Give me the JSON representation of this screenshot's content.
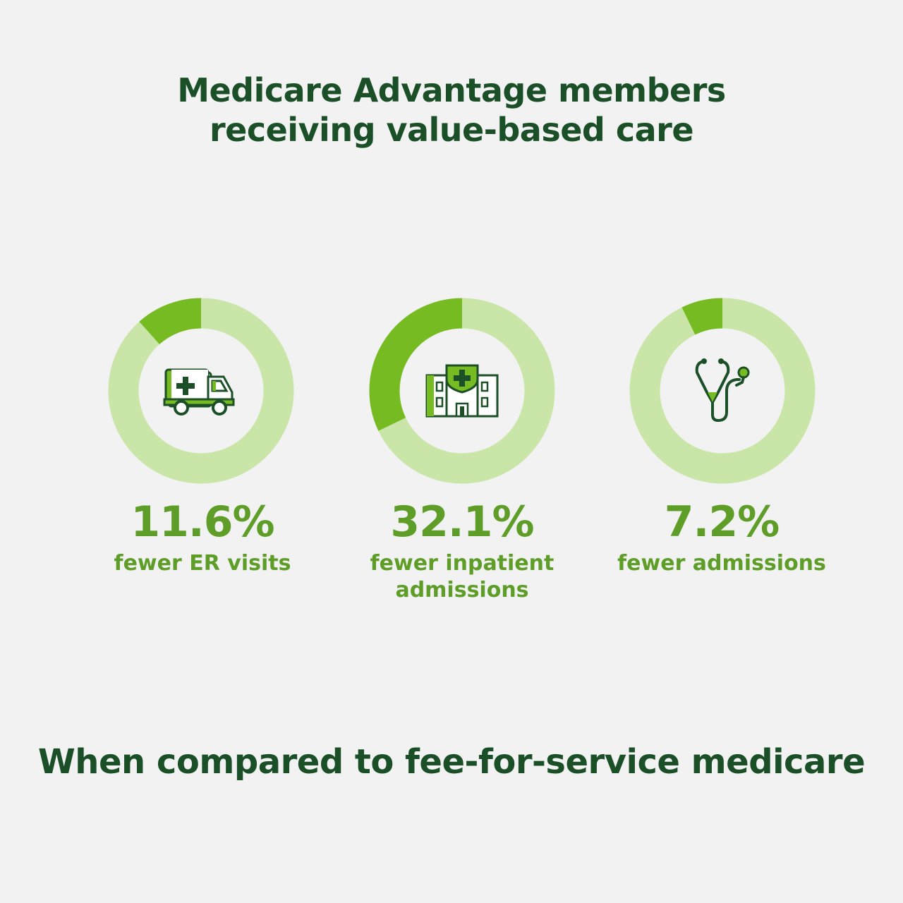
{
  "title_lines": [
    "Medicare Advantage members",
    "receiving value-based care"
  ],
  "footer": "When compared to fee-for-service medicare",
  "colors": {
    "track": "#c9e6a8",
    "accent": "#77bb22",
    "text_green": "#5e9e28",
    "dark_green": "#1b4f27",
    "background": "#f2f2f2"
  },
  "chart_data": [
    {
      "type": "pie",
      "value": 11.6,
      "display": "11.6%",
      "label_lines": [
        "fewer ER visits"
      ],
      "icon": "ambulance-icon"
    },
    {
      "type": "pie",
      "value": 32.1,
      "display": "32.1%",
      "label_lines": [
        "fewer inpatient",
        "admissions"
      ],
      "icon": "hospital-icon"
    },
    {
      "type": "pie",
      "value": 7.2,
      "display": "7.2%",
      "label_lines": [
        "fewer admissions"
      ],
      "icon": "stethoscope-icon"
    }
  ]
}
